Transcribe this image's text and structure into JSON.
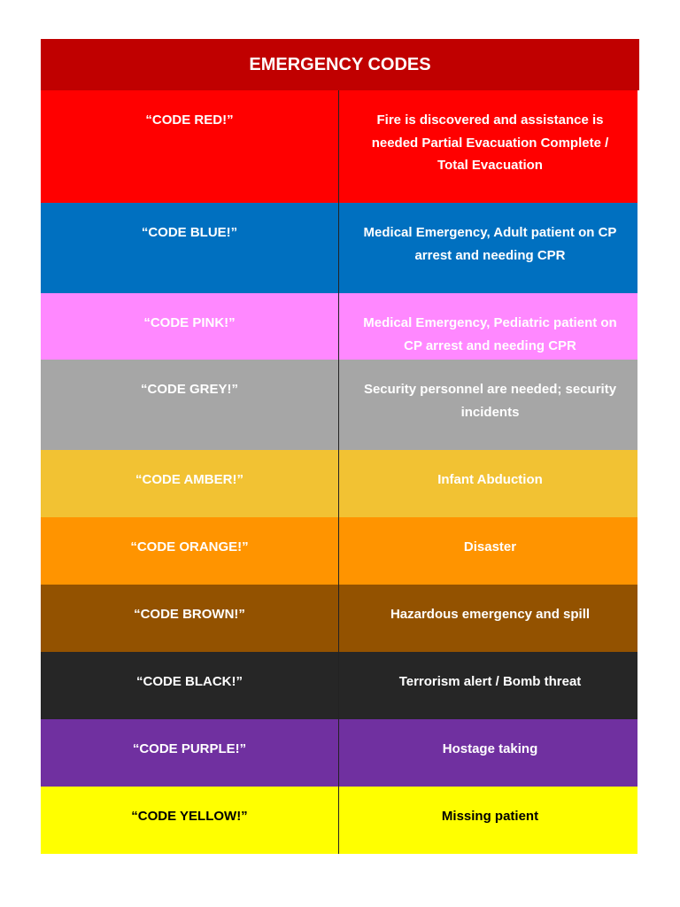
{
  "title": "EMERGENCY CODES",
  "rows": [
    {
      "code": "“CODE RED!”",
      "description": "Fire is discovered and assistance is needed Partial Evacuation Complete / Total Evacuation"
    },
    {
      "code": "“CODE BLUE!”",
      "description": "Medical Emergency, Adult patient on CP arrest and needing CPR"
    },
    {
      "code": "“CODE PINK!”",
      "description": "Medical Emergency, Pediatric patient on CP arrest and needing CPR"
    },
    {
      "code": "“CODE GREY!”",
      "description": "Security personnel are needed; security incidents"
    },
    {
      "code": "“CODE AMBER!”",
      "description": "Infant Abduction"
    },
    {
      "code": "“CODE ORANGE!”",
      "description": "Disaster"
    },
    {
      "code": "“CODE BROWN!”",
      "description": "Hazardous emergency and spill"
    },
    {
      "code": "“CODE BLACK!”",
      "description": "Terrorism alert / Bomb threat"
    },
    {
      "code": "“CODE PURPLE!”",
      "description": "Hostage taking"
    },
    {
      "code": "“CODE YELLOW!”",
      "description": "Missing patient"
    }
  ]
}
